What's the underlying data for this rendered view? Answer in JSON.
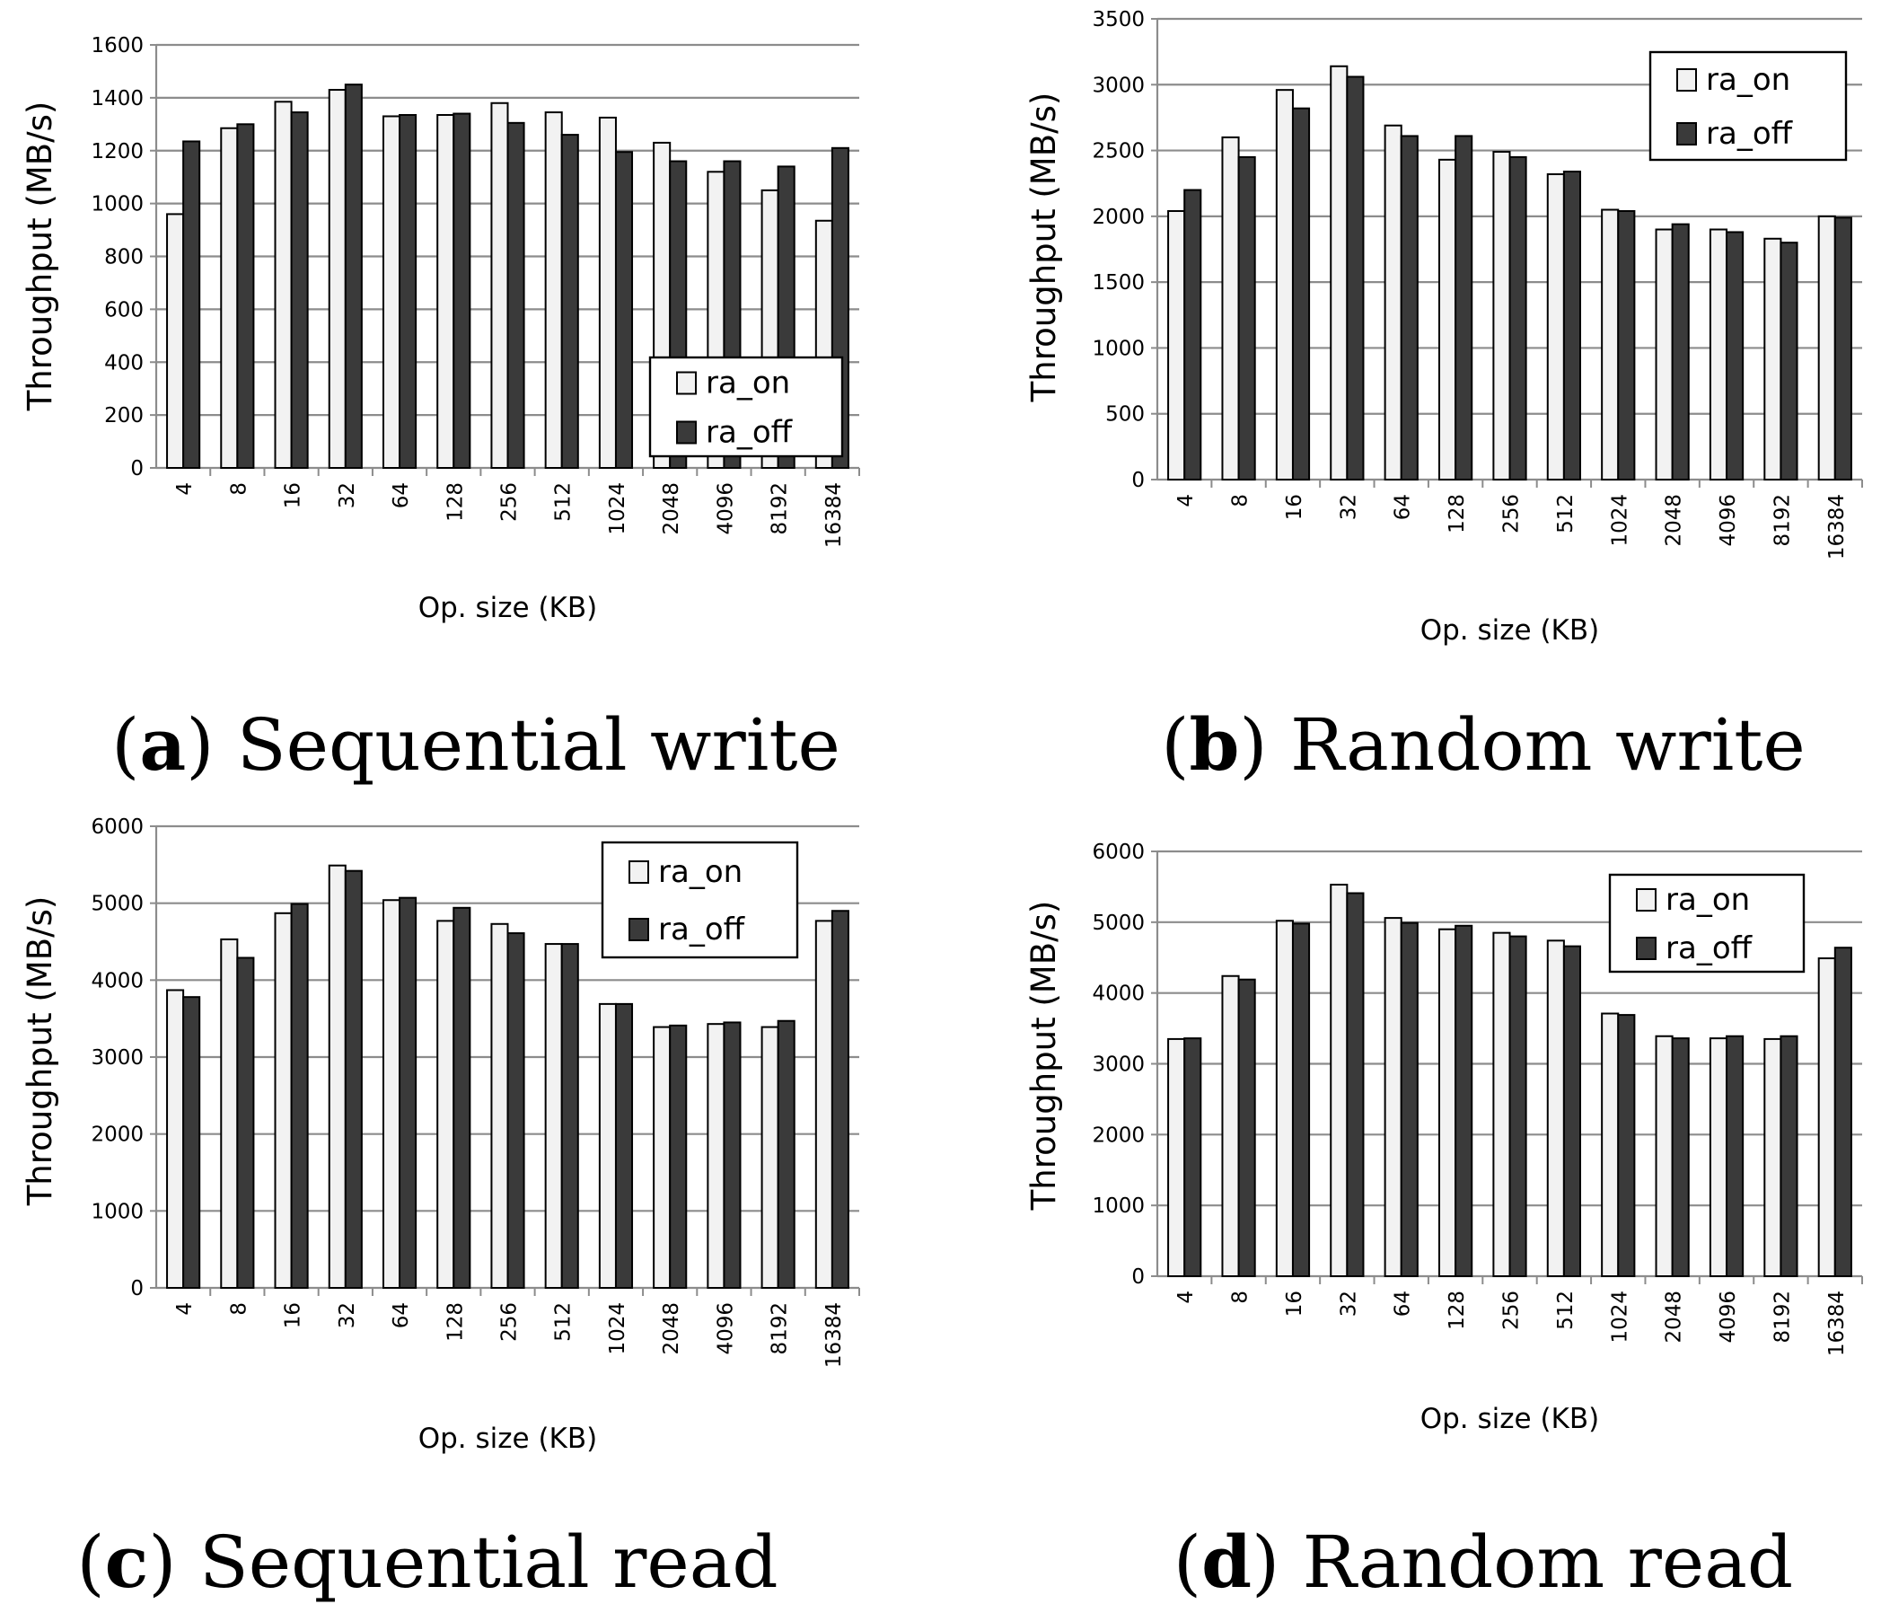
{
  "chart_data": [
    {
      "type": "bar",
      "caption_letter": "a",
      "caption_text": "Sequential write",
      "xlabel": "Op. size (KB)",
      "ylabel": "Throughput (MB/s)",
      "categories": [
        "4",
        "8",
        "16",
        "32",
        "64",
        "128",
        "256",
        "512",
        "1024",
        "2048",
        "4096",
        "8192",
        "16384"
      ],
      "ylim": [
        0,
        1600
      ],
      "yticks": [
        0,
        200,
        400,
        600,
        800,
        1000,
        1200,
        1400,
        1600
      ],
      "grid": true,
      "legend_position": "bottom-right",
      "series": [
        {
          "name": "ra_on",
          "color": "#f2f2f2",
          "values": [
            960,
            1285,
            1385,
            1430,
            1330,
            1335,
            1380,
            1345,
            1325,
            1230,
            1120,
            1050,
            935
          ]
        },
        {
          "name": "ra_off",
          "color": "#3a3a3a",
          "values": [
            1235,
            1300,
            1345,
            1450,
            1335,
            1340,
            1305,
            1260,
            1195,
            1160,
            1160,
            1140,
            1210
          ]
        }
      ]
    },
    {
      "type": "bar",
      "caption_letter": "b",
      "caption_text": "Random write",
      "xlabel": "Op. size (KB)",
      "ylabel": "Throughput (MB/s)",
      "categories": [
        "4",
        "8",
        "16",
        "32",
        "64",
        "128",
        "256",
        "512",
        "1024",
        "2048",
        "4096",
        "8192",
        "16384"
      ],
      "ylim": [
        0,
        3500
      ],
      "yticks": [
        0,
        500,
        1000,
        1500,
        2000,
        2500,
        3000,
        3500
      ],
      "grid": true,
      "legend_position": "top-right",
      "series": [
        {
          "name": "ra_on",
          "color": "#f2f2f2",
          "values": [
            2040,
            2600,
            2960,
            3140,
            2690,
            2430,
            2490,
            2320,
            2050,
            1900,
            1900,
            1830,
            2000
          ]
        },
        {
          "name": "ra_off",
          "color": "#3a3a3a",
          "values": [
            2200,
            2450,
            2820,
            3060,
            2610,
            2610,
            2450,
            2340,
            2040,
            1940,
            1880,
            1800,
            1990
          ]
        }
      ]
    },
    {
      "type": "bar",
      "caption_letter": "c",
      "caption_text": "Sequential read",
      "xlabel": "Op. size (KB)",
      "ylabel": "Throughput (MB/s)",
      "categories": [
        "4",
        "8",
        "16",
        "32",
        "64",
        "128",
        "256",
        "512",
        "1024",
        "2048",
        "4096",
        "8192",
        "16384"
      ],
      "ylim": [
        0,
        6000
      ],
      "yticks": [
        0,
        1000,
        2000,
        3000,
        4000,
        5000,
        6000
      ],
      "grid": true,
      "legend_position": "top-right",
      "series": [
        {
          "name": "ra_on",
          "color": "#f2f2f2",
          "values": [
            3870,
            4530,
            4870,
            5490,
            5040,
            4770,
            4730,
            4470,
            3690,
            3390,
            3430,
            3390,
            4770
          ]
        },
        {
          "name": "ra_off",
          "color": "#3a3a3a",
          "values": [
            3780,
            4290,
            4990,
            5420,
            5070,
            4940,
            4610,
            4470,
            3690,
            3410,
            3450,
            3470,
            4900
          ]
        }
      ]
    },
    {
      "type": "bar",
      "caption_letter": "d",
      "caption_text": "Random read",
      "xlabel": "Op. size (KB)",
      "ylabel": "Throughput (MB/s)",
      "categories": [
        "4",
        "8",
        "16",
        "32",
        "64",
        "128",
        "256",
        "512",
        "1024",
        "2048",
        "4096",
        "8192",
        "16384"
      ],
      "ylim": [
        0,
        6000
      ],
      "yticks": [
        0,
        1000,
        2000,
        3000,
        4000,
        5000,
        6000
      ],
      "grid": true,
      "legend_position": "top-right",
      "series": [
        {
          "name": "ra_on",
          "color": "#f2f2f2",
          "values": [
            3350,
            4240,
            5020,
            5530,
            5060,
            4900,
            4850,
            4740,
            3710,
            3390,
            3360,
            3350,
            4490
          ]
        },
        {
          "name": "ra_off",
          "color": "#3a3a3a",
          "values": [
            3360,
            4190,
            4980,
            5410,
            4990,
            4950,
            4800,
            4660,
            3690,
            3360,
            3390,
            3390,
            4640
          ]
        }
      ]
    }
  ]
}
